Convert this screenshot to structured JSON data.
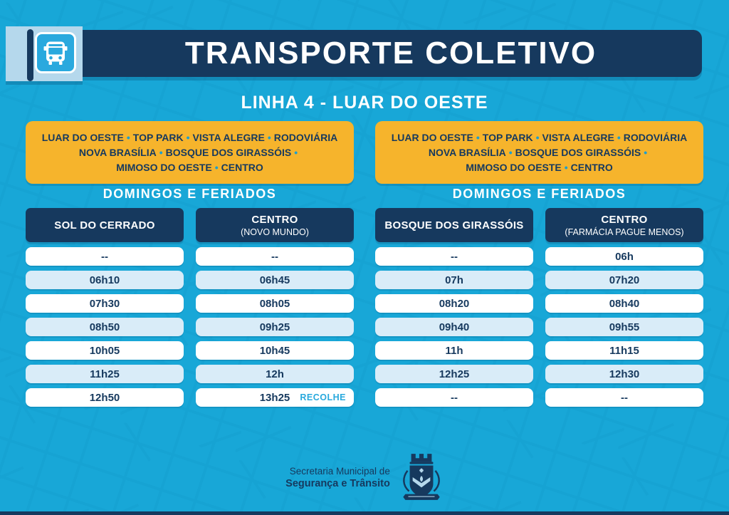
{
  "colors": {
    "background_cyan": "#18a7d7",
    "navy": "#16395e",
    "route_box_yellow": "#f6b42c",
    "row_alt_blue": "#d9ecf8",
    "accent_cyan": "#2aa9de",
    "panel_light_blue": "#b5d8ec",
    "note_cyan": "#29a9dd"
  },
  "header": {
    "title": "TRANSPORTE COLETIVO",
    "subtitle": "LINHA 4 - LUAR DO OESTE",
    "icon": "bus-stop-icon"
  },
  "route_box": {
    "separator": "•",
    "lines": [
      {
        "stops": [
          "LUAR DO OESTE",
          "TOP PARK",
          "VISTA ALEGRE",
          "RODOVIÁRIA"
        ],
        "trailing_separator": false
      },
      {
        "stops": [
          "NOVA BRASÍLIA",
          "BOSQUE DOS GIRASSÓIS"
        ],
        "trailing_separator": true
      },
      {
        "stops": [
          "MIMOSO DO OESTE",
          "CENTRO"
        ],
        "trailing_separator": false
      }
    ]
  },
  "sections": [
    {
      "heading": "DOMINGOS E FERIADOS",
      "columns": [
        {
          "title": "SOL DO CERRADO",
          "times": [
            "--",
            "06h10",
            "07h30",
            "08h50",
            "10h05",
            "11h25",
            "12h50"
          ]
        },
        {
          "title": "CENTRO",
          "subtitle": "(NOVO MUNDO)",
          "times": [
            "--",
            "06h45",
            "08h05",
            "09h25",
            "10h45",
            "12h",
            "13h25"
          ],
          "note": "RECOLHE",
          "note_row": 6
        }
      ]
    },
    {
      "heading": "DOMINGOS E FERIADOS",
      "columns": [
        {
          "title": "BOSQUE DOS GIRASSÓIS",
          "times": [
            "--",
            "07h",
            "08h20",
            "09h40",
            "11h",
            "12h25",
            "--"
          ]
        },
        {
          "title": "CENTRO",
          "subtitle": "(FARMÁCIA PAGUE MENOS)",
          "times": [
            "06h",
            "07h20",
            "08h40",
            "09h55",
            "11h15",
            "12h30",
            "--"
          ]
        }
      ]
    }
  ],
  "footer": {
    "org_line1": "Secretaria Municipal de",
    "org_line2": "Segurança e Trânsito",
    "icon": "municipal-crest"
  }
}
